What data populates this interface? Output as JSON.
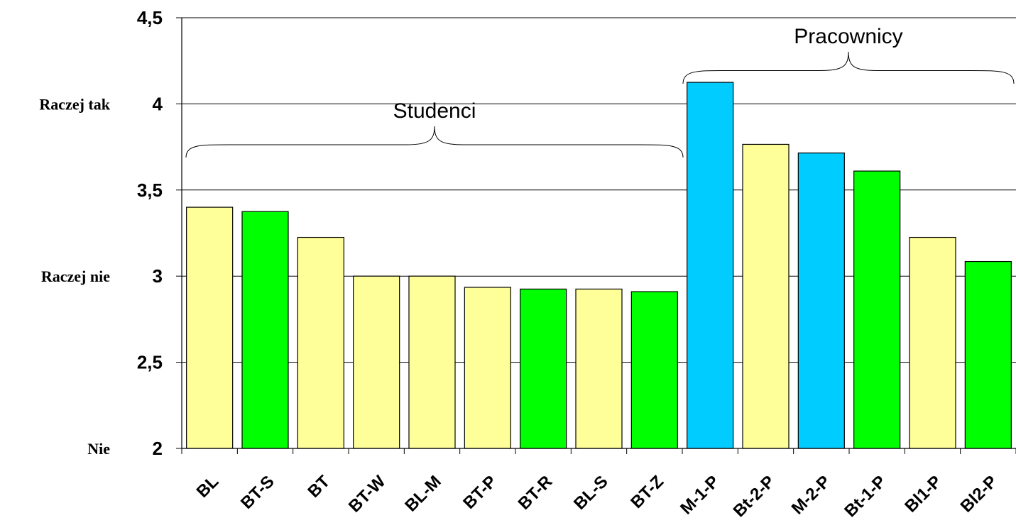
{
  "chart_data": {
    "type": "bar",
    "categories": [
      "BL",
      "BT-S",
      "BT",
      "BT-W",
      "BL-M",
      "BT-P",
      "BT-R",
      "BL-S",
      "BT-Z",
      "M-1-P",
      "Bt-2-P",
      "M-2-P",
      "Bt-1-P",
      "Bl1-P",
      "Bl2-P"
    ],
    "values": [
      3.4,
      3.375,
      3.225,
      3.0,
      3.0,
      2.935,
      2.925,
      2.925,
      2.91,
      4.125,
      3.765,
      3.715,
      3.61,
      3.225,
      3.085
    ],
    "colors": [
      "#ffff99",
      "#00ff00",
      "#ffff99",
      "#ffff99",
      "#ffff99",
      "#ffff99",
      "#00ff00",
      "#ffff99",
      "#00ff00",
      "#00ccff",
      "#ffff99",
      "#00ccff",
      "#00ff00",
      "#ffff99",
      "#00ff00"
    ],
    "ylim": [
      2,
      4.5
    ],
    "yticks": [
      "2",
      "2,5",
      "3",
      "3,5",
      "4",
      "4,5"
    ],
    "ytick_values": [
      2,
      2.5,
      3,
      3.5,
      4,
      4.5
    ],
    "category_labels": [
      {
        "text": "Raczej tak",
        "value": 4
      },
      {
        "text": "Raczej nie",
        "value": 3
      },
      {
        "text": "Nie",
        "value": 2
      }
    ],
    "groups": [
      {
        "label": "Studenci",
        "from": 0,
        "to": 8
      },
      {
        "label": "Pracownicy",
        "from": 9,
        "to": 14
      }
    ],
    "grid": true,
    "legend": "none",
    "title": "",
    "xlabel": "",
    "ylabel": ""
  }
}
